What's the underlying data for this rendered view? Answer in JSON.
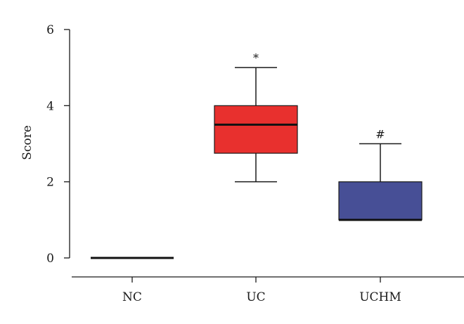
{
  "chart_data": {
    "type": "boxplot",
    "ylabel": "Score",
    "ylim": [
      0,
      6
    ],
    "yticks": [
      "0",
      "2",
      "4",
      "6"
    ],
    "ytick_values": [
      0,
      2,
      4,
      6
    ],
    "categories": [
      "NC",
      "UC",
      "UCHM"
    ],
    "boxes": [
      {
        "category": "NC",
        "min": 0,
        "q1": 0,
        "median": 0,
        "q3": 0,
        "max": 0,
        "color": "#000000",
        "annotation": ""
      },
      {
        "category": "UC",
        "min": 2,
        "q1": 2.75,
        "median": 3.5,
        "q3": 4,
        "max": 5,
        "color": "#e8302e",
        "annotation": "*"
      },
      {
        "category": "UCHM",
        "min": 1,
        "q1": 1,
        "median": 1,
        "q3": 2,
        "max": 3,
        "color": "#474f96",
        "annotation": "#"
      }
    ],
    "grid": false,
    "legend": "none"
  }
}
